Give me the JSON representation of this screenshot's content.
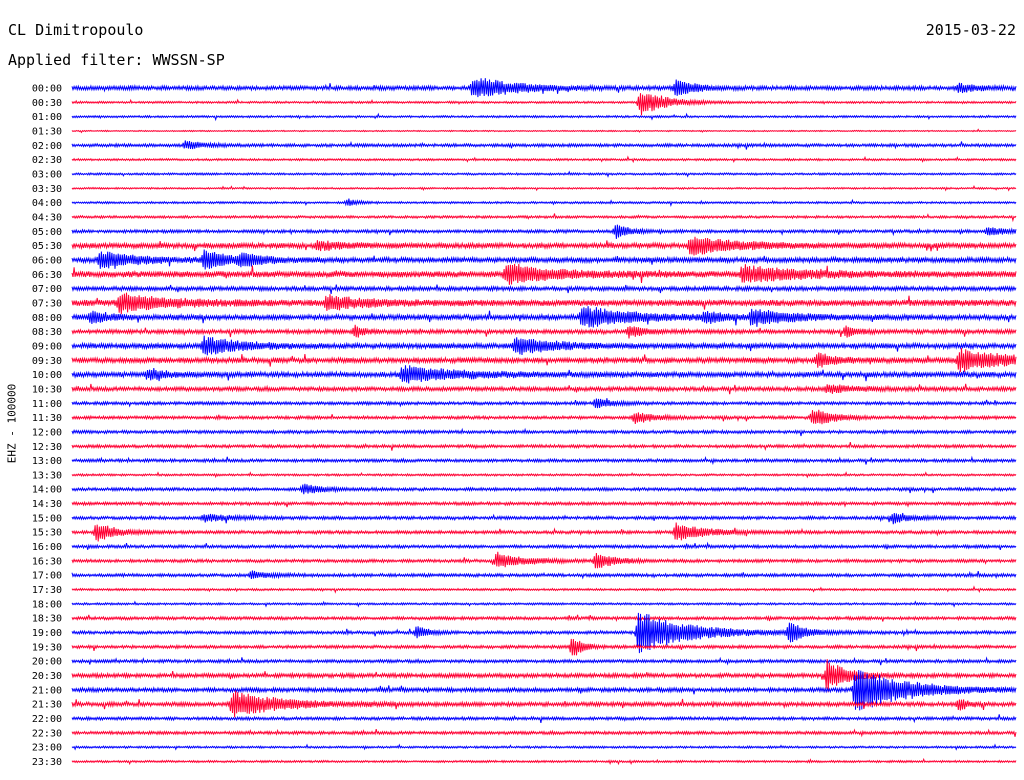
{
  "header": {
    "station": "CL Dimitropoulo",
    "date": "2015-03-22",
    "filter": "Applied filter: WWSSN-SP"
  },
  "colors": {
    "even_row": "#0000ff",
    "odd_row": "#ff0033"
  },
  "chart_data": {
    "type": "helicorder",
    "ylabel": "EHZ - 100000",
    "rows": [
      "00:00",
      "00:30",
      "01:00",
      "01:30",
      "02:00",
      "02:30",
      "03:00",
      "03:30",
      "04:00",
      "04:30",
      "05:00",
      "05:30",
      "06:00",
      "06:30",
      "07:00",
      "07:30",
      "08:00",
      "08:30",
      "09:00",
      "09:30",
      "10:00",
      "10:30",
      "11:00",
      "11:30",
      "12:00",
      "12:30",
      "13:00",
      "13:30",
      "14:00",
      "14:30",
      "15:00",
      "15:30",
      "16:00",
      "16:30",
      "17:00",
      "17:30",
      "18:00",
      "18:30",
      "19:00",
      "19:30",
      "20:00",
      "20:30",
      "21:00",
      "21:30",
      "22:00",
      "22:30",
      "23:00",
      "23:30"
    ],
    "row_minutes": 30,
    "noise_level": [
      2,
      1,
      1,
      0.6,
      1.5,
      1,
      1,
      0.8,
      1,
      1.2,
      1.5,
      2.5,
      2.5,
      3,
      2,
      3,
      2.5,
      2,
      2.5,
      2.5,
      2.5,
      2,
      1.5,
      1.5,
      1.5,
      1.5,
      1.5,
      1,
      1.5,
      1.5,
      1.5,
      1.5,
      1.5,
      1.5,
      1.5,
      1,
      1,
      1.5,
      1.5,
      1.5,
      1.5,
      2,
      2,
      2,
      1.5,
      1.5,
      1,
      1
    ],
    "events": [
      {
        "row": 0,
        "t": 0.425,
        "amp": 11,
        "dur": 0.045
      },
      {
        "row": 0,
        "t": 0.64,
        "amp": 8,
        "dur": 0.02
      },
      {
        "row": 0,
        "t": 0.94,
        "amp": 4,
        "dur": 0.02
      },
      {
        "row": 1,
        "t": 0.602,
        "amp": 14,
        "dur": 0.025
      },
      {
        "row": 4,
        "t": 0.12,
        "amp": 4,
        "dur": 0.02
      },
      {
        "row": 8,
        "t": 0.292,
        "amp": 4,
        "dur": 0.01
      },
      {
        "row": 10,
        "t": 0.576,
        "amp": 7,
        "dur": 0.015
      },
      {
        "row": 10,
        "t": 0.97,
        "amp": 4,
        "dur": 0.02
      },
      {
        "row": 11,
        "t": 0.655,
        "amp": 9,
        "dur": 0.05
      },
      {
        "row": 11,
        "t": 0.26,
        "amp": 4,
        "dur": 0.03
      },
      {
        "row": 12,
        "t": 0.03,
        "amp": 8,
        "dur": 0.04
      },
      {
        "row": 12,
        "t": 0.14,
        "amp": 9,
        "dur": 0.03
      },
      {
        "row": 12,
        "t": 0.18,
        "amp": 6,
        "dur": 0.02
      },
      {
        "row": 13,
        "t": 0.46,
        "amp": 10,
        "dur": 0.05
      },
      {
        "row": 13,
        "t": 0.71,
        "amp": 8,
        "dur": 0.06
      },
      {
        "row": 15,
        "t": 0.05,
        "amp": 9,
        "dur": 0.05
      },
      {
        "row": 15,
        "t": 0.27,
        "amp": 7,
        "dur": 0.04
      },
      {
        "row": 16,
        "t": 0.02,
        "amp": 6,
        "dur": 0.02
      },
      {
        "row": 16,
        "t": 0.54,
        "amp": 11,
        "dur": 0.05
      },
      {
        "row": 16,
        "t": 0.67,
        "amp": 6,
        "dur": 0.02
      },
      {
        "row": 16,
        "t": 0.72,
        "amp": 8,
        "dur": 0.04
      },
      {
        "row": 17,
        "t": 0.3,
        "amp": 6,
        "dur": 0.01
      },
      {
        "row": 17,
        "t": 0.59,
        "amp": 6,
        "dur": 0.015
      },
      {
        "row": 17,
        "t": 0.82,
        "amp": 6,
        "dur": 0.01
      },
      {
        "row": 18,
        "t": 0.14,
        "amp": 9,
        "dur": 0.04
      },
      {
        "row": 18,
        "t": 0.47,
        "amp": 9,
        "dur": 0.04
      },
      {
        "row": 19,
        "t": 0.79,
        "amp": 7,
        "dur": 0.02
      },
      {
        "row": 19,
        "t": 0.94,
        "amp": 11,
        "dur": 0.05
      },
      {
        "row": 20,
        "t": 0.08,
        "amp": 5,
        "dur": 0.02
      },
      {
        "row": 20,
        "t": 0.35,
        "amp": 8,
        "dur": 0.06
      },
      {
        "row": 21,
        "t": 0.8,
        "amp": 4,
        "dur": 0.03
      },
      {
        "row": 22,
        "t": 0.555,
        "amp": 4,
        "dur": 0.02
      },
      {
        "row": 23,
        "t": 0.596,
        "amp": 6,
        "dur": 0.02
      },
      {
        "row": 23,
        "t": 0.785,
        "amp": 10,
        "dur": 0.02
      },
      {
        "row": 28,
        "t": 0.245,
        "amp": 5,
        "dur": 0.02
      },
      {
        "row": 30,
        "t": 0.14,
        "amp": 4,
        "dur": 0.03
      },
      {
        "row": 30,
        "t": 0.87,
        "amp": 5,
        "dur": 0.02
      },
      {
        "row": 31,
        "t": 0.026,
        "amp": 10,
        "dur": 0.02
      },
      {
        "row": 31,
        "t": 0.64,
        "amp": 9,
        "dur": 0.03
      },
      {
        "row": 33,
        "t": 0.45,
        "amp": 8,
        "dur": 0.03
      },
      {
        "row": 33,
        "t": 0.555,
        "amp": 8,
        "dur": 0.02
      },
      {
        "row": 34,
        "t": 0.19,
        "amp": 4,
        "dur": 0.02
      },
      {
        "row": 38,
        "t": 0.6,
        "amp": 22,
        "dur": 0.05
      },
      {
        "row": 38,
        "t": 0.365,
        "amp": 8,
        "dur": 0.01
      },
      {
        "row": 38,
        "t": 0.76,
        "amp": 11,
        "dur": 0.015
      },
      {
        "row": 39,
        "t": 0.53,
        "amp": 12,
        "dur": 0.01
      },
      {
        "row": 41,
        "t": 0.8,
        "amp": 16,
        "dur": 0.02
      },
      {
        "row": 42,
        "t": 0.83,
        "amp": 24,
        "dur": 0.05
      },
      {
        "row": 43,
        "t": 0.17,
        "amp": 13,
        "dur": 0.05
      },
      {
        "row": 43,
        "t": 0.94,
        "amp": 6,
        "dur": 0.01
      }
    ]
  }
}
